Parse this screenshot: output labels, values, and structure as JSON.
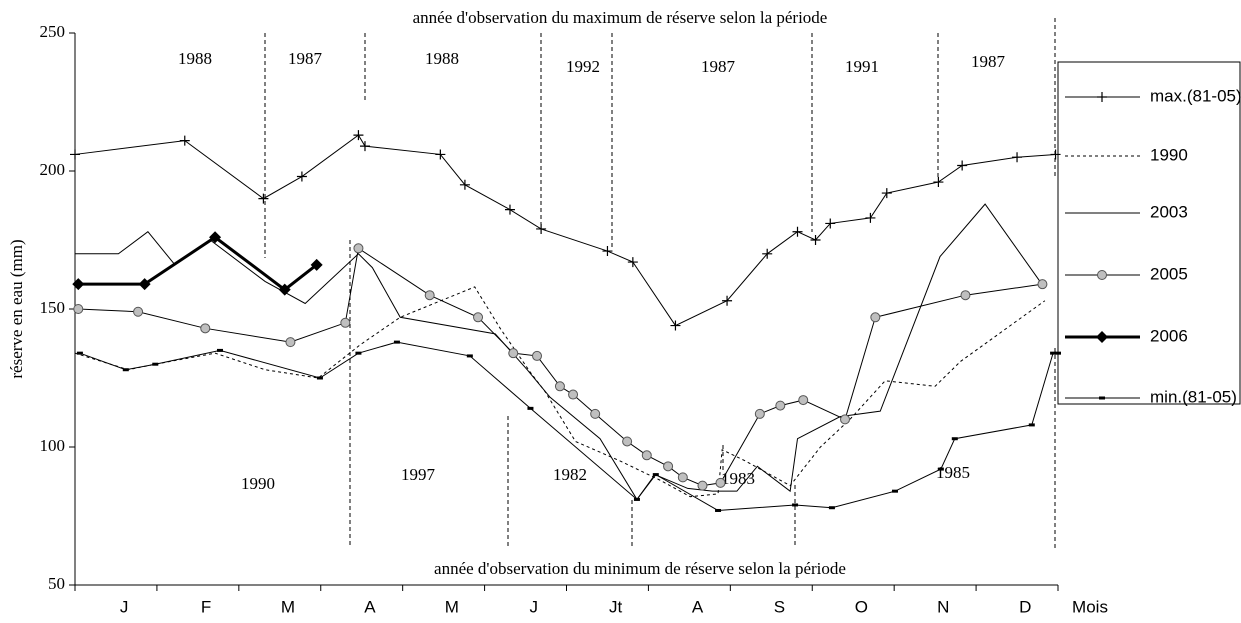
{
  "chart_data": {
    "type": "line",
    "top_note": "année d'observation du maximum de réserve selon la période",
    "bottom_note": "année d'observation du minimum de réserve selon la période",
    "ylabel": "réserve en eau (mm)",
    "xlabel": "Mois",
    "categories": [
      "J",
      "F",
      "M",
      "A",
      "M",
      "J",
      "Jt",
      "A",
      "S",
      "O",
      "N",
      "D"
    ],
    "xlim": [
      0,
      12
    ],
    "ylim": [
      50,
      250
    ],
    "yticks": [
      50,
      100,
      150,
      200,
      250
    ],
    "max_years": [
      "1988",
      "1987",
      "1988",
      "1992",
      "1987",
      "1991",
      "1987"
    ],
    "min_years": [
      "1990",
      "1997",
      "1982",
      "1983",
      "1985"
    ],
    "series": [
      {
        "name": "max.(81-05)",
        "color": "#000000",
        "dash": "solid",
        "width": 1,
        "marker": "plus",
        "x": [
          0,
          1.34,
          2.3,
          2.77,
          3.46,
          3.54,
          4.46,
          4.76,
          5.31,
          5.69,
          6.5,
          6.81,
          7.33,
          7.96,
          8.45,
          8.82,
          9.04,
          9.22,
          9.71,
          9.91,
          10.54,
          10.83,
          11.5,
          11.97
        ],
        "values": [
          206,
          211,
          190,
          198,
          213,
          209,
          206,
          195,
          186,
          179,
          171,
          167,
          144,
          153,
          170,
          178,
          175,
          181,
          183,
          192,
          196,
          202,
          205,
          206
        ]
      },
      {
        "name": "1990",
        "color": "#000000",
        "dash": "dotted",
        "width": 1,
        "marker": "none",
        "x": [
          0,
          0.65,
          0.98,
          1.71,
          2.32,
          2.97,
          3.48,
          3.97,
          4.88,
          5.19,
          5.56,
          5.74,
          6.11,
          6.65,
          7.14,
          7.51,
          7.85,
          7.9,
          8.18,
          8.73,
          9.1,
          9.46,
          9.89,
          10.5,
          10.81,
          11.84
        ],
        "values": [
          134,
          128,
          130,
          134,
          128,
          125,
          137,
          147,
          158,
          143,
          127,
          120,
          102,
          95,
          88,
          82,
          83,
          99,
          95,
          86,
          100,
          110,
          124,
          122,
          131,
          153
        ]
      },
      {
        "name": "2003",
        "color": "#000000",
        "dash": "solid",
        "width": 1,
        "marker": "none",
        "x": [
          0,
          0.53,
          0.89,
          1.22,
          1.65,
          2.32,
          2.81,
          3.46,
          3.63,
          3.97,
          5.13,
          5.52,
          5.8,
          6.41,
          6.86,
          7.08,
          7.48,
          7.78,
          8.08,
          8.33,
          8.73,
          8.82,
          9.34,
          9.83,
          10.56,
          11.11,
          11.78
        ],
        "values": [
          170,
          170,
          178,
          166,
          175,
          160,
          152,
          170,
          165,
          147,
          141,
          128,
          118,
          103,
          81,
          90,
          85,
          84,
          84,
          93,
          84,
          103,
          111,
          113,
          169,
          188,
          160
        ]
      },
      {
        "name": "2005",
        "color": "#000000",
        "marker_fill": "#bfbfbf",
        "dash": "solid",
        "width": 1,
        "marker": "circle",
        "x": [
          0.04,
          0.77,
          1.59,
          2.63,
          3.3,
          3.46,
          4.33,
          4.92,
          5.35,
          5.64,
          5.92,
          6.08,
          6.35,
          6.74,
          6.98,
          7.24,
          7.42,
          7.66,
          7.88,
          8.36,
          8.61,
          8.89,
          9.4,
          9.77,
          10.87,
          11.81
        ],
        "values": [
          150,
          149,
          143,
          138,
          145,
          172,
          155,
          147,
          134,
          133,
          122,
          119,
          112,
          102,
          97,
          93,
          89,
          86,
          87,
          112,
          115,
          117,
          110,
          147,
          155,
          159
        ]
      },
      {
        "name": "2006",
        "color": "#000000",
        "dash": "solid",
        "width": 3,
        "marker": "diamond",
        "x": [
          0.04,
          0.85,
          1.71,
          2.56,
          2.95
        ],
        "values": [
          159,
          159,
          176,
          157,
          166
        ]
      },
      {
        "name": "min.(81-05)",
        "color": "#000000",
        "dash": "solid",
        "width": 1,
        "marker": "dash",
        "x": [
          0.06,
          0.62,
          0.98,
          1.77,
          2.99,
          3.46,
          3.93,
          4.82,
          5.56,
          6.86,
          7.09,
          7.85,
          8.79,
          9.24,
          10.01,
          10.57,
          10.74,
          11.68,
          11.94,
          12.0
        ],
        "values": [
          134,
          128,
          130,
          135,
          125,
          134,
          138,
          133,
          114,
          81,
          90,
          77,
          79,
          78,
          84,
          92,
          103,
          108,
          134,
          134
        ]
      }
    ]
  }
}
